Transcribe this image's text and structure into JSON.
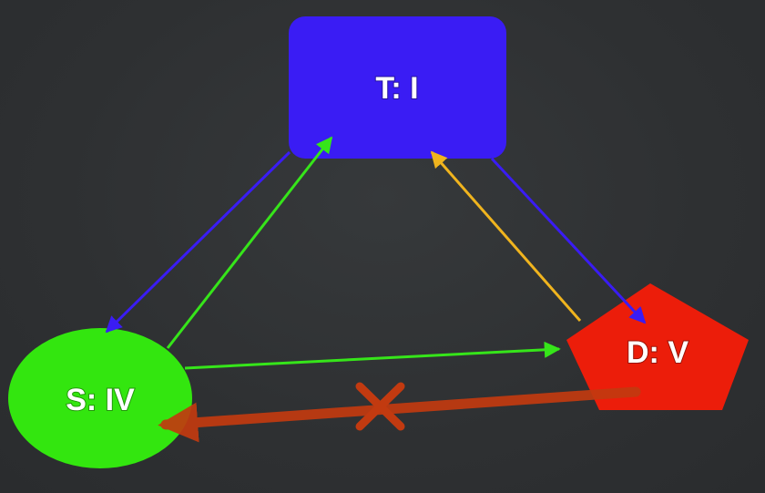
{
  "diagram": {
    "nodes": {
      "top": {
        "label": "T:  I",
        "shape": "rounded-rectangle",
        "color": "#3a1cf4"
      },
      "left": {
        "label": "S: IV",
        "shape": "ellipse",
        "color": "#33e60f"
      },
      "right": {
        "label": "D: V",
        "shape": "pentagon",
        "color": "#ec1d0a"
      }
    },
    "edges": [
      {
        "from": "top",
        "to": "left",
        "color": "#3a1cf4"
      },
      {
        "from": "left",
        "to": "top",
        "color": "#36e51a"
      },
      {
        "from": "top",
        "to": "right",
        "color": "#3a1cf4"
      },
      {
        "from": "right",
        "to": "top",
        "color": "#f0b41e"
      },
      {
        "from": "left",
        "to": "right",
        "color": "#36e51a"
      },
      {
        "from": "right",
        "to": "left",
        "color": "#c23a10",
        "crossed": true
      }
    ],
    "cross_mark": {
      "icon": "x-mark",
      "color": "#c23a10"
    },
    "background": "#2f3133"
  }
}
